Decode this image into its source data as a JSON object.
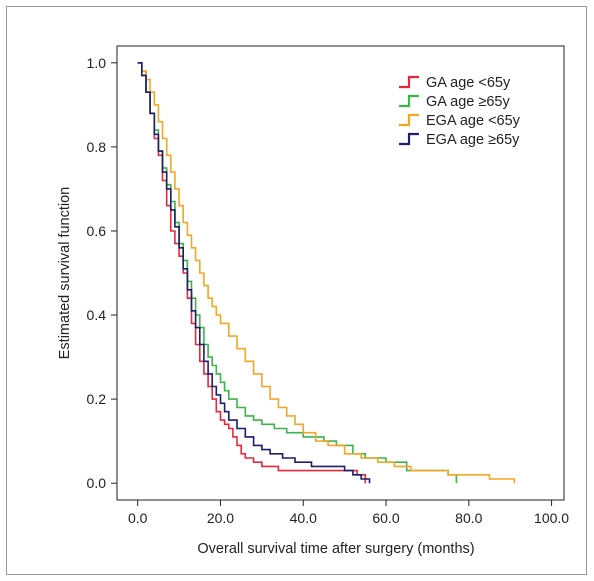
{
  "chart_data": {
    "type": "line",
    "title": "",
    "xlabel": "Overall survival time after surgery (months)",
    "ylabel": "Estimated survival function",
    "xlim": [
      -5,
      103
    ],
    "ylim": [
      -0.04,
      1.04
    ],
    "xticks": [
      0,
      20,
      40,
      60,
      80,
      100
    ],
    "xtick_labels": [
      "0.0",
      "20.0",
      "40.0",
      "60.0",
      "80.0",
      "100.0"
    ],
    "yticks": [
      0,
      0.2,
      0.4,
      0.6,
      0.8,
      1.0
    ],
    "ytick_labels": [
      "0.0",
      "0.2",
      "0.4",
      "0.6",
      "0.8",
      "1.0"
    ],
    "grid": false,
    "legend_position": "top-right",
    "step": true,
    "series": [
      {
        "name": "GA age <65y",
        "color": "#e8283c",
        "x": [
          0,
          1,
          2,
          3,
          4,
          5,
          6,
          7,
          8,
          9,
          10,
          11,
          12,
          13,
          14,
          15,
          16,
          17,
          18,
          19,
          20,
          21,
          22,
          23,
          24,
          25,
          26,
          28,
          30,
          32,
          34,
          36,
          38,
          40,
          45,
          50,
          53,
          55
        ],
        "y": [
          1.0,
          0.98,
          0.93,
          0.88,
          0.82,
          0.78,
          0.72,
          0.66,
          0.6,
          0.57,
          0.54,
          0.5,
          0.44,
          0.38,
          0.33,
          0.29,
          0.26,
          0.23,
          0.2,
          0.17,
          0.15,
          0.14,
          0.13,
          0.11,
          0.09,
          0.07,
          0.06,
          0.05,
          0.04,
          0.04,
          0.03,
          0.03,
          0.03,
          0.03,
          0.03,
          0.03,
          0.02,
          0.0
        ]
      },
      {
        "name": "GA age ≥65y",
        "color": "#3bb44a",
        "x": [
          0,
          1,
          2,
          3,
          4,
          5,
          6,
          7,
          8,
          9,
          10,
          11,
          12,
          13,
          14,
          15,
          16,
          17,
          18,
          19,
          20,
          21,
          22,
          24,
          26,
          28,
          30,
          33,
          36,
          40,
          45,
          48,
          52,
          55,
          60,
          65,
          70,
          75,
          77
        ],
        "y": [
          1.0,
          0.97,
          0.93,
          0.88,
          0.84,
          0.79,
          0.75,
          0.71,
          0.67,
          0.62,
          0.57,
          0.53,
          0.48,
          0.44,
          0.4,
          0.37,
          0.33,
          0.3,
          0.28,
          0.26,
          0.24,
          0.22,
          0.2,
          0.18,
          0.16,
          0.15,
          0.14,
          0.13,
          0.12,
          0.11,
          0.1,
          0.09,
          0.07,
          0.06,
          0.05,
          0.03,
          0.03,
          0.02,
          0.0
        ]
      },
      {
        "name": "EGA age <65y",
        "color": "#f5a623",
        "x": [
          0,
          1,
          2,
          3,
          4,
          5,
          6,
          7,
          8,
          9,
          10,
          11,
          12,
          13,
          14,
          15,
          16,
          17,
          18,
          19,
          20,
          22,
          24,
          26,
          28,
          30,
          32,
          34,
          36,
          38,
          40,
          43,
          46,
          50,
          54,
          58,
          62,
          66,
          70,
          75,
          80,
          85,
          91
        ],
        "y": [
          1.0,
          0.98,
          0.96,
          0.93,
          0.9,
          0.86,
          0.82,
          0.78,
          0.74,
          0.7,
          0.66,
          0.62,
          0.59,
          0.56,
          0.53,
          0.5,
          0.47,
          0.44,
          0.42,
          0.4,
          0.38,
          0.35,
          0.32,
          0.29,
          0.26,
          0.23,
          0.2,
          0.18,
          0.16,
          0.14,
          0.12,
          0.1,
          0.09,
          0.07,
          0.06,
          0.05,
          0.04,
          0.03,
          0.03,
          0.02,
          0.02,
          0.01,
          0.0
        ]
      },
      {
        "name": "EGA age ≥65y",
        "color": "#1c1f6b",
        "x": [
          0,
          1,
          2,
          3,
          4,
          5,
          6,
          7,
          8,
          9,
          10,
          11,
          12,
          13,
          14,
          15,
          16,
          17,
          18,
          19,
          20,
          21,
          22,
          24,
          26,
          28,
          30,
          32,
          35,
          38,
          42,
          46,
          50,
          52,
          54,
          56
        ],
        "y": [
          1.0,
          0.97,
          0.93,
          0.88,
          0.83,
          0.79,
          0.74,
          0.7,
          0.65,
          0.61,
          0.56,
          0.51,
          0.46,
          0.41,
          0.37,
          0.33,
          0.29,
          0.26,
          0.23,
          0.21,
          0.19,
          0.17,
          0.15,
          0.13,
          0.11,
          0.09,
          0.08,
          0.07,
          0.06,
          0.05,
          0.04,
          0.04,
          0.03,
          0.02,
          0.01,
          0.0
        ]
      }
    ]
  }
}
